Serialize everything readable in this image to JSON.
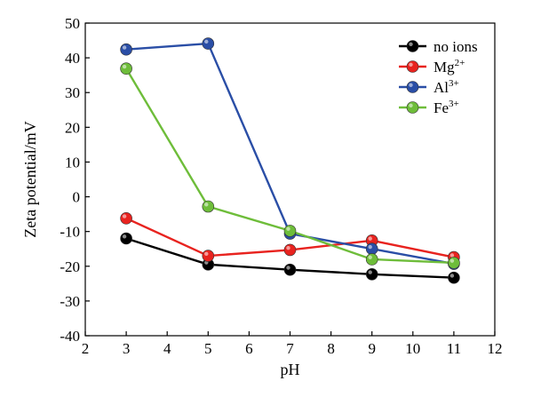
{
  "chart_data": {
    "type": "line",
    "title": "",
    "xlabel": "pH",
    "ylabel": "Zeta potential/mV",
    "xlim": [
      2,
      12
    ],
    "ylim": [
      -40,
      50
    ],
    "x_ticks": [
      2,
      3,
      4,
      5,
      6,
      7,
      8,
      9,
      10,
      11,
      12
    ],
    "y_ticks": [
      -40,
      -30,
      -20,
      -10,
      0,
      10,
      20,
      30,
      40,
      50
    ],
    "x_tick_labels": [
      "2",
      "3",
      "4",
      "5",
      "6",
      "7",
      "8",
      "9",
      "10",
      "11",
      "12"
    ],
    "y_tick_labels": [
      "-40",
      "-30",
      "-20",
      "-10",
      "0",
      "10",
      "20",
      "30",
      "40",
      "50"
    ],
    "legend_position": "top-right",
    "grid": false,
    "x": [
      3,
      5,
      7,
      9,
      11
    ],
    "series": [
      {
        "name": "no ions",
        "name_base": "no ions",
        "name_sup": "",
        "color": "#000000",
        "values": [
          -12,
          -19.5,
          -21,
          -22.3,
          -23.3
        ]
      },
      {
        "name": "Mg2+",
        "name_base": "Mg",
        "name_sup": "2+",
        "color": "#e8231f",
        "values": [
          -6.2,
          -17,
          -15.3,
          -12.6,
          -17.4
        ]
      },
      {
        "name": "Al3+",
        "name_base": "Al",
        "name_sup": "3+",
        "color": "#2a4ea6",
        "values": [
          42.4,
          44.1,
          -10.6,
          -15,
          -19.3
        ]
      },
      {
        "name": "Fe3+",
        "name_base": "Fe",
        "name_sup": "3+",
        "color": "#6ebd3a",
        "values": [
          36.9,
          -2.8,
          -9.8,
          -18,
          -19
        ]
      }
    ]
  }
}
